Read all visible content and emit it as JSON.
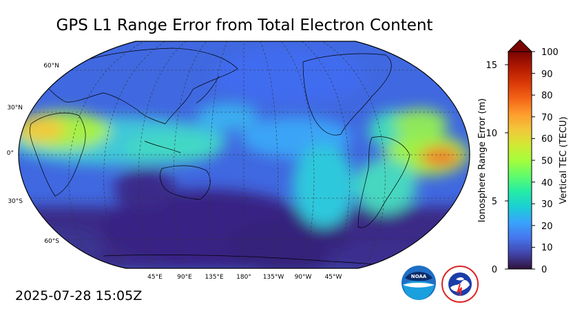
{
  "title": "GPS L1 Range Error from Total Electron Content",
  "timestamp": "2025-07-28 15:05Z",
  "map": {
    "lat_labels": [
      "60°N",
      "30°N",
      "0°",
      "30°S",
      "60°S"
    ],
    "lon_labels": [
      "45°E",
      "90°E",
      "135°E",
      "180°",
      "135°W",
      "90°W",
      "45°W"
    ]
  },
  "colorbar": {
    "left_label": "Ionosphere Range Error (m)",
    "left_ticks": [
      "0",
      "5",
      "10",
      "15"
    ],
    "right_label": "Vertical TEC (TECU)",
    "right_ticks": [
      "0",
      "10",
      "20",
      "30",
      "40",
      "50",
      "60",
      "70",
      "80",
      "90",
      "100"
    ],
    "extend": "max",
    "stops": [
      "#30123b",
      "#4145ab",
      "#4675ed",
      "#39a2fc",
      "#1bcfd4",
      "#24eca6",
      "#61fc6c",
      "#a4fc3b",
      "#d1e834",
      "#f3c63a",
      "#fe9b2d",
      "#f36315",
      "#d93806",
      "#b11901",
      "#7a0402"
    ]
  },
  "logos": {
    "noaa_text": "NOAA",
    "nws_text": "NATIONAL WEATHER SERVICE"
  },
  "colors": {
    "background": "#ffffff",
    "ocean_base": "#4068e0"
  }
}
